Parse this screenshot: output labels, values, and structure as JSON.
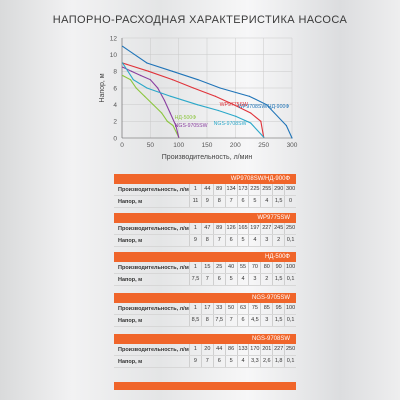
{
  "title": "НАПОРНО-РАСХОДНАЯ ХАРАКТЕРИСТИКА НАСОСА",
  "chart_data": {
    "type": "line",
    "xlabel": "Производительность, л/мин",
    "ylabel": "Напор, м",
    "xlim": [
      0,
      300
    ],
    "ylim": [
      0,
      12
    ],
    "xticks": [
      0,
      50,
      100,
      150,
      200,
      250,
      300
    ],
    "yticks": [
      0,
      2,
      4,
      6,
      8,
      10,
      12
    ],
    "series": [
      {
        "name": "WP9708SW/НД-900Ф",
        "color": "#1f74b8",
        "x": [
          1,
          44,
          89,
          134,
          173,
          225,
          255,
          290,
          300
        ],
        "y": [
          11,
          9,
          8,
          7,
          6,
          5,
          4,
          1.5,
          0
        ]
      },
      {
        "name": "WP9775SW",
        "color": "#e0333a",
        "x": [
          1,
          47,
          89,
          126,
          165,
          197,
          227,
          245,
          250
        ],
        "y": [
          9,
          8,
          7,
          6,
          5,
          4,
          3,
          2,
          0.1
        ]
      },
      {
        "name": "НД-500Ф",
        "color": "#8cc63f",
        "x": [
          1,
          15,
          25,
          40,
          55,
          70,
          80,
          90,
          100
        ],
        "y": [
          7.5,
          7,
          6,
          5,
          4,
          3,
          2,
          1.5,
          0.1
        ]
      },
      {
        "name": "NGS-9705SW",
        "color": "#8a3fa0",
        "x": [
          1,
          17,
          33,
          50,
          63,
          75,
          85,
          95,
          100
        ],
        "y": [
          8.5,
          8,
          7.5,
          7,
          6,
          4.5,
          3,
          1.5,
          0.1
        ]
      },
      {
        "name": "NGS-9708SW",
        "color": "#2aa8c9",
        "x": [
          1,
          20,
          44,
          86,
          133,
          170,
          201,
          227,
          250
        ],
        "y": [
          9,
          7,
          6,
          5,
          4,
          3.3,
          2.6,
          1.8,
          0.1
        ]
      }
    ]
  },
  "tables": [
    {
      "title": "WP9708SW/НД-900Ф",
      "rows": [
        {
          "label": "Производительность, л/мин",
          "values": [
            "1",
            "44",
            "89",
            "134",
            "173",
            "225",
            "255",
            "290",
            "300"
          ]
        },
        {
          "label": "Напор, м",
          "values": [
            "11",
            "9",
            "8",
            "7",
            "6",
            "5",
            "4",
            "1,5",
            "0"
          ]
        }
      ]
    },
    {
      "title": "WP9775SW",
      "rows": [
        {
          "label": "Производительность, л/мин",
          "values": [
            "1",
            "47",
            "89",
            "126",
            "165",
            "197",
            "227",
            "245",
            "250"
          ]
        },
        {
          "label": "Напор, м",
          "values": [
            "9",
            "8",
            "7",
            "6",
            "5",
            "4",
            "3",
            "2",
            "0,1"
          ]
        }
      ]
    },
    {
      "title": "НД-500Ф",
      "rows": [
        {
          "label": "Производительность, л/мин",
          "values": [
            "1",
            "15",
            "25",
            "40",
            "55",
            "70",
            "80",
            "90",
            "100"
          ]
        },
        {
          "label": "Напор, м",
          "values": [
            "7,5",
            "7",
            "6",
            "5",
            "4",
            "3",
            "2",
            "1,5",
            "0,1"
          ]
        }
      ]
    },
    {
      "title": "NGS-9705SW",
      "rows": [
        {
          "label": "Производительность, л/мин",
          "values": [
            "1",
            "17",
            "33",
            "50",
            "63",
            "75",
            "85",
            "95",
            "100"
          ]
        },
        {
          "label": "Напор, м",
          "values": [
            "8,5",
            "8",
            "7,5",
            "7",
            "6",
            "4,5",
            "3",
            "1,5",
            "0,1"
          ]
        }
      ]
    },
    {
      "title": "NGS-9708SW",
      "rows": [
        {
          "label": "Производительность, л/мин",
          "values": [
            "1",
            "20",
            "44",
            "86",
            "133",
            "170",
            "201",
            "227",
            "250"
          ]
        },
        {
          "label": "Напор, м",
          "values": [
            "9",
            "7",
            "6",
            "5",
            "4",
            "3,3",
            "2,6",
            "1,8",
            "0,1"
          ]
        }
      ]
    }
  ]
}
